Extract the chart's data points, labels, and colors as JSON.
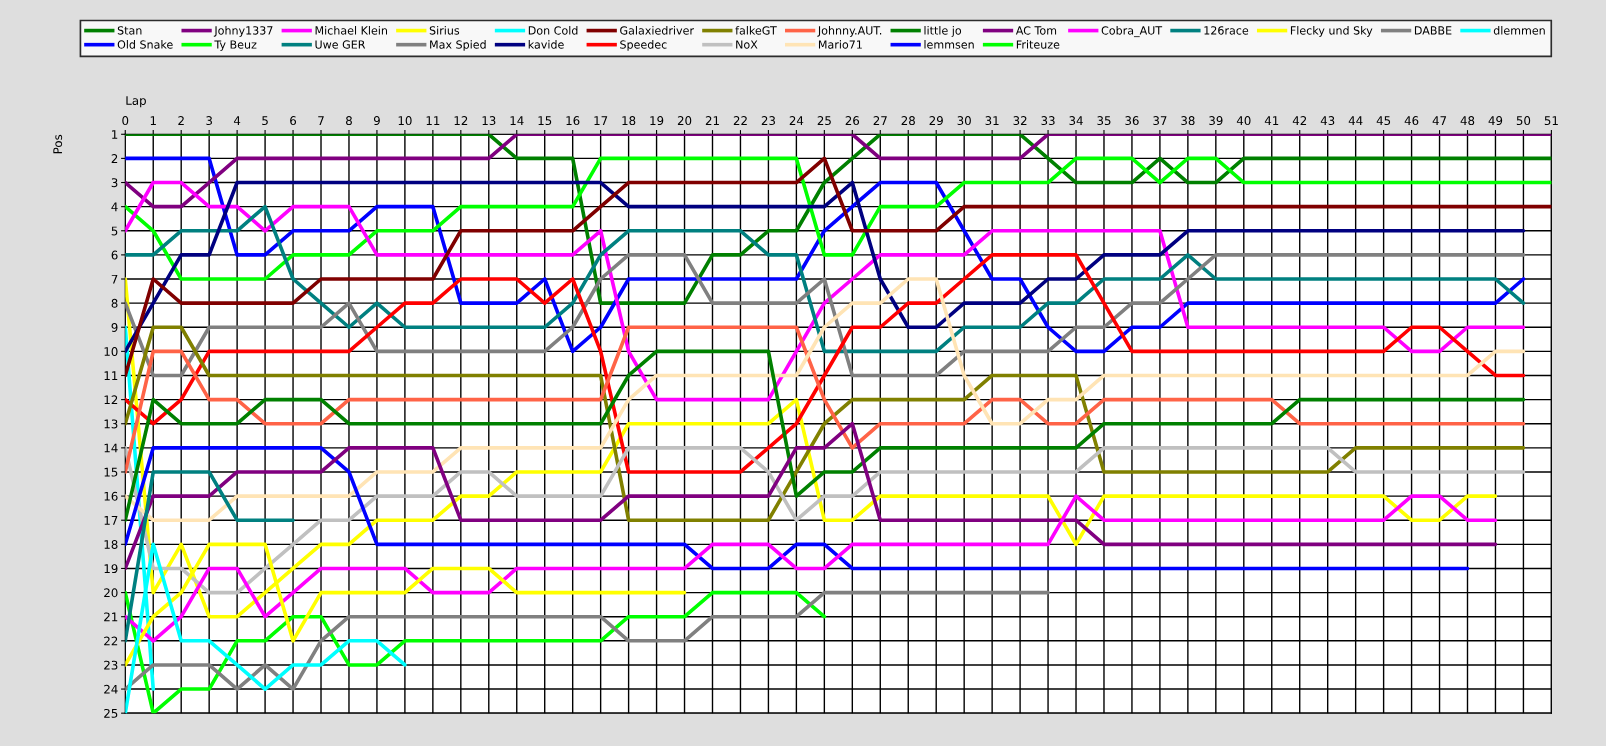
{
  "chart_data": {
    "type": "line",
    "xlabel": "Lap",
    "ylabel": "Pos",
    "x": [
      0,
      1,
      2,
      3,
      4,
      5,
      6,
      7,
      8,
      9,
      10,
      11,
      12,
      13,
      14,
      15,
      16,
      17,
      18,
      19,
      20,
      21,
      22,
      23,
      24,
      25,
      26,
      27,
      28,
      29,
      30,
      31,
      32,
      33,
      34,
      35,
      36,
      37,
      38,
      39,
      40,
      41,
      42,
      43,
      44,
      45,
      46,
      47,
      48,
      49,
      50,
      51
    ],
    "xlim": [
      0,
      51
    ],
    "ylim": [
      25,
      1
    ],
    "xticks": [
      0,
      1,
      2,
      3,
      4,
      5,
      6,
      7,
      8,
      9,
      10,
      11,
      12,
      13,
      14,
      15,
      16,
      17,
      18,
      19,
      20,
      21,
      22,
      23,
      24,
      25,
      26,
      27,
      28,
      29,
      30,
      31,
      32,
      33,
      34,
      35,
      36,
      37,
      38,
      39,
      40,
      41,
      42,
      43,
      44,
      45,
      46,
      47,
      48,
      49,
      50,
      51
    ],
    "yticks": [
      1,
      2,
      3,
      4,
      5,
      6,
      7,
      8,
      9,
      10,
      11,
      12,
      13,
      14,
      15,
      16,
      17,
      18,
      19,
      20,
      21,
      22,
      23,
      24,
      25
    ],
    "grid": true,
    "legend": "top",
    "series": [
      {
        "name": "Stan",
        "color": "#008000",
        "values": [
          1,
          1,
          1,
          1,
          1,
          1,
          1,
          1,
          1,
          1,
          1,
          1,
          1,
          1,
          2,
          2,
          2,
          8,
          8,
          8,
          8,
          6,
          6,
          5,
          5,
          3,
          2,
          1,
          1,
          1,
          1,
          1,
          1,
          2,
          3,
          3,
          3,
          2,
          3,
          3,
          2,
          2,
          2,
          2,
          2,
          2,
          2,
          2,
          2,
          2,
          2,
          2
        ]
      },
      {
        "name": "Old Snake",
        "color": "#0000ff",
        "values": [
          2,
          2,
          2,
          2,
          6,
          6,
          5,
          5,
          5,
          4,
          4,
          4,
          8,
          8,
          8,
          7,
          10,
          9,
          7,
          7,
          7,
          7,
          7,
          7,
          7,
          5,
          4,
          3,
          3,
          3,
          5,
          7,
          7,
          9,
          10,
          10,
          9,
          9,
          8,
          8,
          8,
          8,
          8,
          8,
          8,
          8,
          8,
          8,
          8,
          8,
          7,
          null
        ]
      },
      {
        "name": "Johny1337",
        "color": "#800080",
        "values": [
          3,
          4,
          4,
          3,
          2,
          2,
          2,
          2,
          2,
          2,
          2,
          2,
          2,
          2,
          1,
          1,
          1,
          1,
          1,
          1,
          1,
          1,
          1,
          1,
          1,
          1,
          1,
          2,
          2,
          2,
          2,
          2,
          2,
          1,
          1,
          1,
          1,
          1,
          1,
          1,
          1,
          1,
          1,
          1,
          1,
          1,
          1,
          1,
          1,
          1,
          1,
          1
        ]
      },
      {
        "name": "Ty Beuz",
        "color": "#00ff00",
        "values": [
          4,
          5,
          7,
          7,
          7,
          7,
          6,
          6,
          6,
          5,
          5,
          5,
          4,
          4,
          4,
          4,
          4,
          2,
          2,
          2,
          2,
          2,
          2,
          2,
          2,
          6,
          6,
          4,
          4,
          4,
          3,
          3,
          3,
          3,
          2,
          2,
          2,
          3,
          2,
          2,
          3,
          3,
          3,
          3,
          3,
          3,
          3,
          3,
          3,
          3,
          3,
          3
        ]
      },
      {
        "name": "Michael Klein",
        "color": "#ff00ff",
        "values": [
          5,
          3,
          3,
          4,
          4,
          5,
          4,
          4,
          4,
          6,
          6,
          6,
          6,
          6,
          6,
          6,
          6,
          5,
          10,
          12,
          12,
          12,
          12,
          12,
          10,
          8,
          7,
          6,
          6,
          6,
          6,
          5,
          5,
          5,
          5,
          5,
          5,
          5,
          9,
          9,
          9,
          9,
          9,
          9,
          9,
          9,
          10,
          10,
          9,
          9,
          9,
          null
        ]
      },
      {
        "name": "Uwe GER",
        "color": "#008080",
        "values": [
          6,
          6,
          5,
          5,
          5,
          4,
          7,
          8,
          9,
          8,
          9,
          9,
          9,
          9,
          9,
          9,
          8,
          6,
          5,
          5,
          5,
          5,
          5,
          6,
          6,
          10,
          10,
          10,
          10,
          10,
          9,
          9,
          9,
          8,
          8,
          7,
          7,
          7,
          6,
          7,
          7,
          7,
          7,
          7,
          7,
          7,
          7,
          7,
          7,
          7,
          8,
          null
        ]
      },
      {
        "name": "Sirius",
        "color": "#ffff00",
        "values": [
          7,
          20,
          18,
          21,
          21,
          20,
          19,
          18,
          18,
          17,
          17,
          17,
          16,
          16,
          15,
          15,
          15,
          15,
          13,
          13,
          13,
          13,
          13,
          13,
          12,
          17,
          17,
          16,
          16,
          16,
          16,
          16,
          16,
          16,
          18,
          16,
          16,
          16,
          16,
          16,
          16,
          16,
          16,
          16,
          16,
          16,
          17,
          17,
          16,
          16,
          null,
          null
        ]
      },
      {
        "name": "Max Spied",
        "color": "#808080",
        "values": [
          8,
          11,
          11,
          9,
          9,
          9,
          9,
          9,
          8,
          10,
          10,
          10,
          10,
          10,
          10,
          10,
          9,
          7,
          6,
          6,
          6,
          8,
          8,
          8,
          8,
          7,
          11,
          11,
          11,
          11,
          10,
          10,
          10,
          10,
          9,
          9,
          8,
          8,
          7,
          6,
          6,
          6,
          6,
          6,
          6,
          6,
          6,
          6,
          6,
          6,
          6,
          null
        ]
      },
      {
        "name": "Don Cold",
        "color": "#00ffff",
        "values": [
          9,
          24,
          null,
          null,
          null,
          null,
          null,
          null,
          null,
          null,
          null,
          null,
          null,
          null,
          null,
          null,
          null,
          null,
          null,
          null,
          null,
          null,
          null,
          null,
          null,
          null,
          null,
          null,
          null,
          null,
          null,
          null,
          null,
          null,
          null,
          null,
          null,
          null,
          null,
          null,
          null,
          null,
          null,
          null,
          null,
          null,
          null,
          null,
          null,
          null,
          null,
          null
        ]
      },
      {
        "name": "kavide",
        "color": "#000080",
        "values": [
          10,
          8,
          6,
          6,
          3,
          3,
          3,
          3,
          3,
          3,
          3,
          3,
          3,
          3,
          3,
          3,
          3,
          3,
          4,
          4,
          4,
          4,
          4,
          4,
          4,
          4,
          3,
          7,
          9,
          9,
          8,
          8,
          8,
          7,
          7,
          6,
          6,
          6,
          5,
          5,
          5,
          5,
          5,
          5,
          5,
          5,
          5,
          5,
          5,
          5,
          5,
          null
        ]
      },
      {
        "name": "Galaxiedriver",
        "color": "#800000",
        "values": [
          11,
          7,
          8,
          8,
          8,
          8,
          8,
          7,
          7,
          7,
          7,
          7,
          5,
          5,
          5,
          5,
          5,
          4,
          3,
          3,
          3,
          3,
          3,
          3,
          3,
          2,
          5,
          5,
          5,
          5,
          4,
          4,
          4,
          4,
          4,
          4,
          4,
          4,
          4,
          4,
          4,
          4,
          4,
          4,
          4,
          4,
          4,
          4,
          4,
          4,
          4,
          4
        ]
      },
      {
        "name": "Speedec",
        "color": "#ff0000",
        "values": [
          12,
          13,
          12,
          10,
          10,
          10,
          10,
          10,
          10,
          9,
          8,
          8,
          7,
          7,
          7,
          8,
          7,
          10,
          15,
          15,
          15,
          15,
          15,
          14,
          13,
          11,
          9,
          9,
          8,
          8,
          7,
          6,
          6,
          6,
          6,
          8,
          10,
          10,
          10,
          10,
          10,
          10,
          10,
          10,
          10,
          10,
          9,
          9,
          10,
          11,
          11,
          null
        ]
      },
      {
        "name": "falkeGT",
        "color": "#808000",
        "values": [
          13,
          9,
          9,
          11,
          11,
          11,
          11,
          11,
          11,
          11,
          11,
          11,
          11,
          11,
          11,
          11,
          11,
          11,
          17,
          17,
          17,
          17,
          17,
          17,
          15,
          13,
          12,
          12,
          12,
          12,
          12,
          11,
          11,
          11,
          11,
          15,
          15,
          15,
          15,
          15,
          15,
          15,
          15,
          15,
          14,
          14,
          14,
          14,
          14,
          14,
          14,
          null
        ]
      },
      {
        "name": "NoX",
        "color": "#c0c0c0",
        "values": [
          14,
          19,
          19,
          20,
          20,
          19,
          18,
          17,
          17,
          16,
          16,
          16,
          15,
          15,
          16,
          16,
          16,
          16,
          14,
          14,
          14,
          14,
          14,
          15,
          17,
          16,
          16,
          15,
          15,
          15,
          15,
          15,
          15,
          15,
          15,
          14,
          14,
          14,
          14,
          14,
          14,
          14,
          14,
          14,
          15,
          15,
          15,
          15,
          15,
          15,
          15,
          null
        ]
      },
      {
        "name": "Johnny.AUT.",
        "color": "#ff6347",
        "values": [
          15,
          10,
          10,
          12,
          12,
          13,
          13,
          13,
          12,
          12,
          12,
          12,
          12,
          12,
          12,
          12,
          12,
          12,
          9,
          9,
          9,
          9,
          9,
          9,
          9,
          12,
          14,
          13,
          13,
          13,
          13,
          12,
          12,
          13,
          13,
          12,
          12,
          12,
          12,
          12,
          12,
          12,
          13,
          13,
          13,
          13,
          13,
          13,
          13,
          13,
          13,
          null
        ]
      },
      {
        "name": "Mario71",
        "color": "#ffe4b5",
        "values": [
          16,
          17,
          17,
          17,
          16,
          16,
          16,
          16,
          16,
          15,
          15,
          15,
          14,
          14,
          14,
          14,
          14,
          14,
          12,
          11,
          11,
          11,
          11,
          11,
          11,
          9,
          8,
          8,
          7,
          7,
          11,
          13,
          13,
          12,
          12,
          11,
          11,
          11,
          11,
          11,
          11,
          11,
          11,
          11,
          11,
          11,
          11,
          11,
          11,
          10,
          10,
          null
        ]
      },
      {
        "name": "little jo",
        "color": "#008000",
        "values": [
          17,
          12,
          13,
          13,
          13,
          12,
          12,
          12,
          13,
          13,
          13,
          13,
          13,
          13,
          13,
          13,
          13,
          13,
          11,
          10,
          10,
          10,
          10,
          10,
          16,
          15,
          15,
          14,
          14,
          14,
          14,
          14,
          14,
          14,
          14,
          13,
          13,
          13,
          13,
          13,
          13,
          13,
          12,
          12,
          12,
          12,
          12,
          12,
          12,
          12,
          12,
          null
        ]
      },
      {
        "name": "lemmsen",
        "color": "#0000ff",
        "values": [
          18,
          14,
          14,
          14,
          14,
          14,
          14,
          14,
          15,
          18,
          18,
          18,
          18,
          18,
          18,
          18,
          18,
          18,
          18,
          18,
          18,
          19,
          19,
          19,
          18,
          18,
          19,
          19,
          19,
          19,
          19,
          19,
          19,
          19,
          19,
          19,
          19,
          19,
          19,
          19,
          19,
          19,
          19,
          19,
          19,
          19,
          19,
          19,
          19,
          null,
          null,
          null
        ]
      },
      {
        "name": "AC Tom",
        "color": "#800080",
        "values": [
          19,
          16,
          16,
          16,
          15,
          15,
          15,
          15,
          14,
          14,
          14,
          14,
          17,
          17,
          17,
          17,
          17,
          17,
          16,
          16,
          16,
          16,
          16,
          16,
          14,
          14,
          13,
          17,
          17,
          17,
          17,
          17,
          17,
          17,
          17,
          18,
          18,
          18,
          18,
          18,
          18,
          18,
          18,
          18,
          18,
          18,
          18,
          18,
          18,
          18,
          null,
          null
        ]
      },
      {
        "name": "Friteuze",
        "color": "#00ff00",
        "values": [
          20,
          25,
          24,
          24,
          22,
          22,
          21,
          21,
          23,
          23,
          22,
          22,
          22,
          22,
          22,
          22,
          22,
          22,
          21,
          21,
          21,
          20,
          20,
          20,
          20,
          21,
          null,
          null,
          null,
          null,
          null,
          null,
          null,
          null,
          null,
          null,
          null,
          null,
          null,
          null,
          null,
          null,
          null,
          null,
          null,
          null,
          null,
          null,
          null,
          null,
          null,
          null
        ]
      },
      {
        "name": "Cobra_AUT",
        "color": "#ff00ff",
        "values": [
          21,
          22,
          21,
          19,
          19,
          21,
          20,
          19,
          19,
          19,
          19,
          20,
          20,
          20,
          19,
          19,
          19,
          19,
          19,
          19,
          19,
          18,
          18,
          18,
          19,
          19,
          18,
          18,
          18,
          18,
          18,
          18,
          18,
          18,
          16,
          17,
          17,
          17,
          17,
          17,
          17,
          17,
          17,
          17,
          17,
          17,
          16,
          16,
          17,
          17,
          null,
          null
        ]
      },
      {
        "name": "126race",
        "color": "#008080",
        "values": [
          22,
          15,
          15,
          15,
          17,
          17,
          17,
          null,
          null,
          null,
          null,
          null,
          null,
          null,
          null,
          null,
          null,
          null,
          null,
          null,
          null,
          null,
          null,
          null,
          null,
          null,
          null,
          null,
          null,
          null,
          null,
          null,
          null,
          null,
          null,
          null,
          null,
          null,
          null,
          null,
          null,
          null,
          null,
          null,
          null,
          null,
          null,
          null,
          null,
          null,
          null,
          null
        ]
      },
      {
        "name": "Flecky und Sky",
        "color": "#ffff00",
        "values": [
          23,
          21,
          20,
          18,
          18,
          18,
          22,
          20,
          20,
          20,
          20,
          19,
          19,
          19,
          20,
          20,
          20,
          20,
          20,
          20,
          20,
          null,
          null,
          null,
          null,
          null,
          null,
          null,
          null,
          null,
          null,
          null,
          null,
          null,
          null,
          null,
          null,
          null,
          null,
          null,
          null,
          null,
          null,
          null,
          null,
          null,
          null,
          null,
          null,
          null,
          null,
          null
        ]
      },
      {
        "name": "DABBE",
        "color": "#808080",
        "values": [
          24,
          23,
          23,
          23,
          24,
          23,
          24,
          22,
          21,
          21,
          21,
          21,
          21,
          21,
          21,
          21,
          21,
          21,
          22,
          22,
          22,
          21,
          21,
          21,
          21,
          20,
          20,
          20,
          20,
          20,
          20,
          20,
          20,
          20,
          null,
          null,
          null,
          null,
          null,
          null,
          null,
          null,
          null,
          null,
          null,
          null,
          null,
          null,
          null,
          null,
          null,
          null
        ]
      },
      {
        "name": "dlemmen",
        "color": "#00ffff",
        "values": [
          25,
          18,
          22,
          22,
          23,
          24,
          23,
          23,
          22,
          22,
          23,
          null,
          null,
          null,
          null,
          null,
          null,
          null,
          null,
          null,
          null,
          null,
          null,
          null,
          null,
          null,
          null,
          null,
          null,
          null,
          null,
          null,
          null,
          null,
          null,
          null,
          null,
          null,
          null,
          null,
          null,
          null,
          null,
          null,
          null,
          null,
          null,
          null,
          null,
          null,
          null,
          null
        ]
      }
    ]
  }
}
